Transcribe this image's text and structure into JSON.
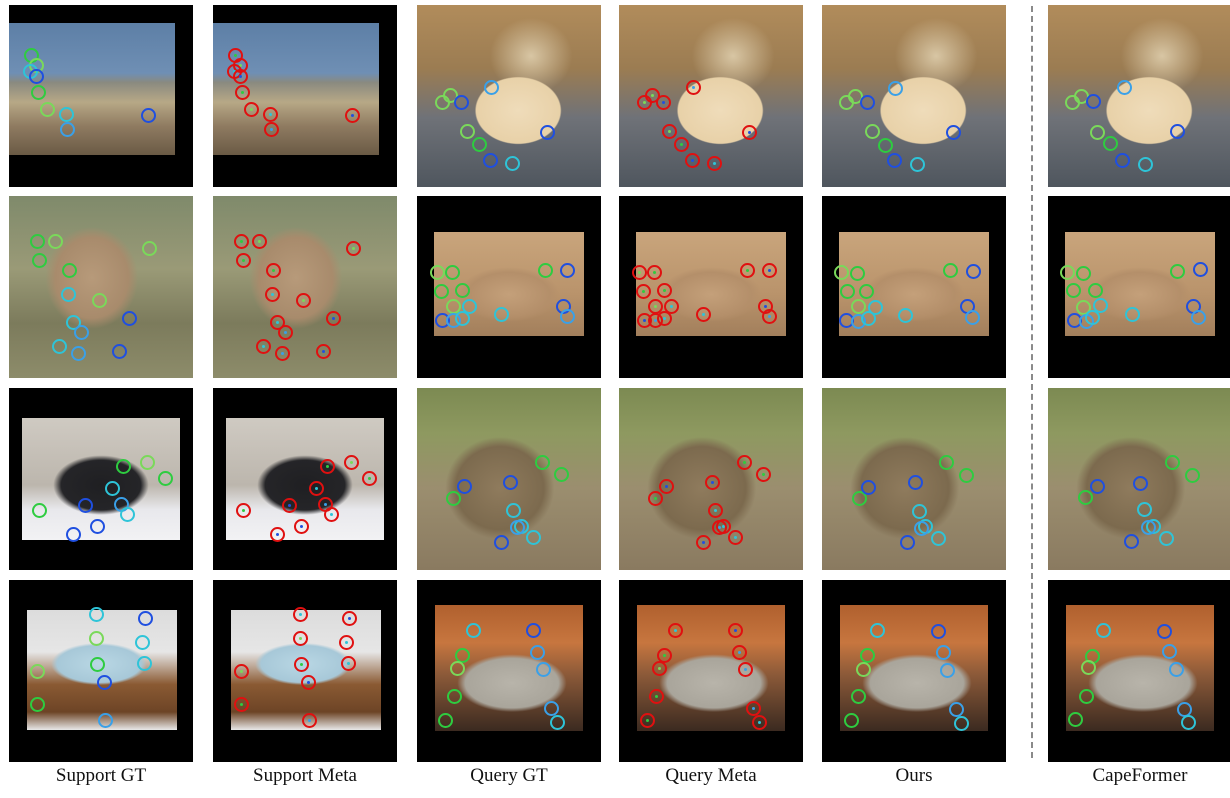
{
  "captions": [
    "Support GT",
    "Support Meta",
    "Query GT",
    "Query Meta",
    "Ours",
    "CapeFormer"
  ],
  "colors": {
    "green": "#2ecc40",
    "light_green": "#7ad95a",
    "cyan": "#2ec4d8",
    "light_blue": "#3aa0e8",
    "blue": "#1f4fe0",
    "red": "#e01010"
  },
  "rows": [
    {
      "subject": "bird-on-rocks"
    },
    {
      "subject": "lioness"
    },
    {
      "subject": "rabbit"
    },
    {
      "subject": "bed"
    }
  ]
}
